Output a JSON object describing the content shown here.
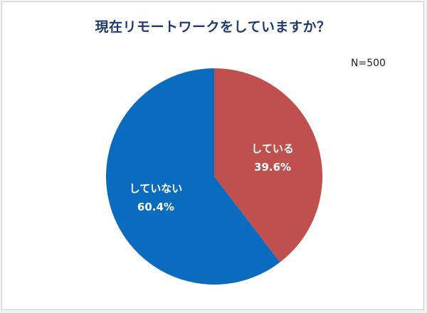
{
  "chart_data": {
    "type": "pie",
    "title": "現在リモートワークをしていますか？",
    "sample_size": "N=500",
    "slices": [
      {
        "label": "している",
        "value": 39.6,
        "value_label": "39.6%",
        "color": "#c0504d"
      },
      {
        "label": "していない",
        "value": 60.4,
        "value_label": "60.4%",
        "color": "#0b6bbf"
      }
    ],
    "start_angle_deg": 0,
    "direction": "clockwise"
  }
}
